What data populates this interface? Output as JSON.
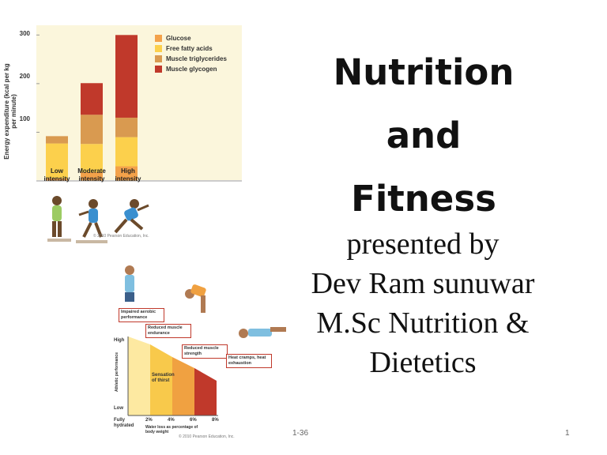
{
  "slide": {
    "title_lines": [
      "Nutrition",
      "and",
      "Fitness"
    ],
    "subtitle_lines": [
      "presented by",
      "Dev Ram sunuwar",
      "M.Sc Nutrition &",
      "Dietetics"
    ],
    "footer_left": "1-36",
    "footer_right": "1"
  },
  "figure_energy": {
    "ylabel": "Energy expenditure (kcal per kg per minute)",
    "yticks": [
      "300",
      "200",
      "100"
    ],
    "credit": "© 2010 Pearson Education, Inc."
  },
  "chart_data": {
    "type": "bar",
    "stacked": true,
    "categories": [
      "Low intensity",
      "Moderate intensity",
      "High intensity"
    ],
    "series": [
      {
        "name": "Glucose",
        "color": "#f3a24a",
        "values": [
          5,
          18,
          30
        ]
      },
      {
        "name": "Free fatty acids",
        "color": "#fcd04c",
        "values": [
          72,
          58,
          60
        ]
      },
      {
        "name": "Muscle triglycerides",
        "color": "#d99a50",
        "values": [
          15,
          60,
          40
        ]
      },
      {
        "name": "Muscle glycogen",
        "color": "#c0392b",
        "values": [
          0,
          65,
          170
        ]
      }
    ],
    "yticks": [
      100,
      200,
      300
    ],
    "ylim": [
      0,
      320
    ],
    "ylabel": "Energy expenditure (kcal per kg per minute)",
    "xlabel": ""
  },
  "figure_dehydration": {
    "callouts": [
      "Impaired aerobic performance",
      "Reduced muscle endurance",
      "Reduced muscle strength",
      "Heat cramps, heat exhaustion"
    ],
    "sensation": "Sensation of thirst",
    "y_high": "High",
    "y_low": "Low",
    "y_axis": "Athletic performance",
    "x_start": "Fully hydrated",
    "x_ticks": [
      "2%",
      "4%",
      "6%",
      "8%"
    ],
    "x_axis": "Water loss as percentage of body weight",
    "credit": "© 2010 Pearson Education, Inc."
  }
}
